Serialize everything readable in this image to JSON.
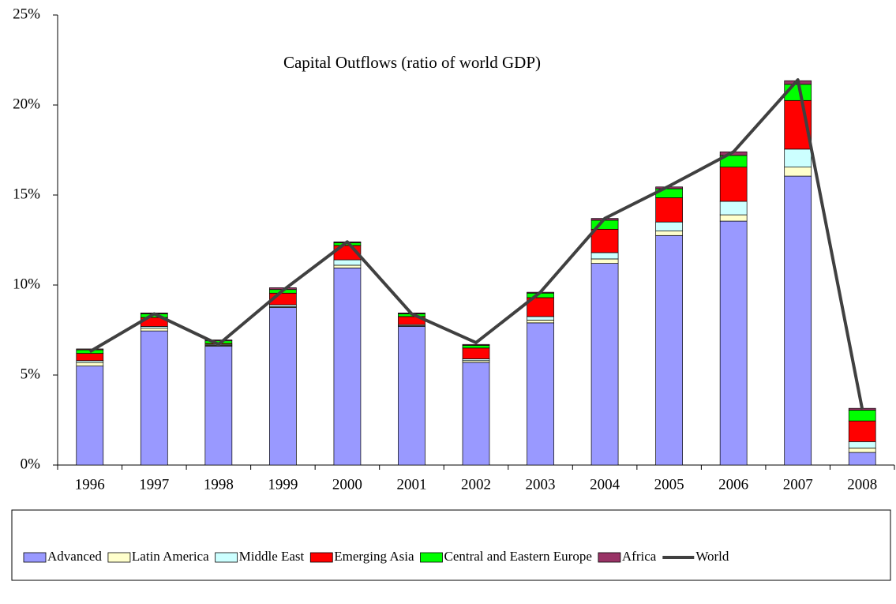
{
  "chart_data": {
    "type": "bar",
    "stacked": true,
    "title": "Capital Outflows (ratio of world GDP)",
    "categories": [
      "1996",
      "1997",
      "1998",
      "1999",
      "2000",
      "2001",
      "2002",
      "2003",
      "2004",
      "2005",
      "2006",
      "2007",
      "2008"
    ],
    "series": [
      {
        "name": "Advanced",
        "color": "#9999ff",
        "values": [
          5.5,
          7.45,
          6.6,
          8.75,
          10.95,
          7.7,
          5.7,
          7.9,
          11.2,
          12.75,
          13.55,
          16.05,
          0.7
        ]
      },
      {
        "name": "Latin America",
        "color": "#ffffcc",
        "values": [
          0.2,
          0.15,
          0.05,
          0.05,
          0.15,
          0.05,
          0.1,
          0.15,
          0.25,
          0.25,
          0.35,
          0.5,
          0.25
        ]
      },
      {
        "name": "Middle East",
        "color": "#ccffff",
        "values": [
          0.1,
          0.1,
          0.05,
          0.1,
          0.3,
          0.05,
          0.1,
          0.2,
          0.35,
          0.5,
          0.75,
          1.0,
          0.35
        ]
      },
      {
        "name": "Emerging Asia",
        "color": "#ff0000",
        "values": [
          0.4,
          0.5,
          0.05,
          0.65,
          0.8,
          0.45,
          0.6,
          1.05,
          1.3,
          1.35,
          1.9,
          2.7,
          1.15
        ]
      },
      {
        "name": "Central and Eastern Europe",
        "color": "#00ff00",
        "values": [
          0.2,
          0.2,
          0.15,
          0.2,
          0.15,
          0.15,
          0.15,
          0.25,
          0.5,
          0.5,
          0.65,
          0.9,
          0.6
        ]
      },
      {
        "name": "Africa",
        "color": "#993366",
        "values": [
          0.05,
          0.05,
          0.05,
          0.1,
          0.05,
          0.05,
          0.05,
          0.05,
          0.1,
          0.1,
          0.2,
          0.2,
          0.1
        ]
      },
      {
        "name": "World",
        "color": "#404040",
        "type": "line",
        "values": [
          6.3,
          8.4,
          6.7,
          9.7,
          12.4,
          8.4,
          6.8,
          9.6,
          13.7,
          15.5,
          17.4,
          21.4,
          3.1
        ]
      }
    ],
    "ylim": [
      0,
      25
    ],
    "yticks": [
      {
        "value": 0,
        "label": "0%"
      },
      {
        "value": 5,
        "label": "5%"
      },
      {
        "value": 10,
        "label": "10%"
      },
      {
        "value": 15,
        "label": "15%"
      },
      {
        "value": 20,
        "label": "20%"
      },
      {
        "value": 25,
        "label": "25%"
      }
    ],
    "grid": false,
    "legend": "bottom"
  }
}
